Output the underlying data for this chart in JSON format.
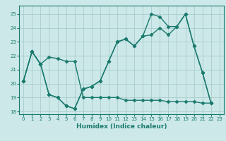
{
  "xlabel": "Humidex (Indice chaleur)",
  "ylabel": "",
  "background_color": "#cce8e8",
  "grid_color": "#aacccc",
  "line_color": "#1a7a6e",
  "xlim": [
    -0.5,
    23.5
  ],
  "ylim": [
    17.8,
    25.6
  ],
  "yticks": [
    18,
    19,
    20,
    21,
    22,
    23,
    24,
    25
  ],
  "xticks": [
    0,
    1,
    2,
    3,
    4,
    5,
    6,
    7,
    8,
    9,
    10,
    11,
    12,
    13,
    14,
    15,
    16,
    17,
    18,
    19,
    20,
    21,
    22,
    23
  ],
  "series": [
    [
      20.2,
      22.3,
      21.4,
      19.2,
      19.0,
      18.4,
      18.2,
      19.6,
      19.8,
      20.2,
      21.6,
      23.0,
      23.2,
      22.7,
      23.4,
      23.5,
      24.0,
      23.5,
      24.1,
      25.0,
      22.7,
      20.8,
      18.6
    ],
    [
      20.2,
      22.3,
      21.4,
      19.2,
      19.0,
      18.4,
      18.2,
      19.6,
      19.8,
      20.2,
      21.6,
      23.0,
      23.2,
      22.7,
      23.4,
      25.0,
      24.8,
      24.1,
      24.1,
      25.0,
      22.7,
      20.8,
      18.6
    ],
    [
      20.2,
      22.3,
      21.4,
      21.9,
      21.8,
      21.6,
      21.6,
      19.0,
      19.0,
      19.0,
      19.0,
      19.0,
      18.8,
      18.8,
      18.8,
      18.8,
      18.8,
      18.7,
      18.7,
      18.7,
      18.7,
      18.6,
      18.6
    ]
  ],
  "marker": "D",
  "markersize": 2.5,
  "linewidth": 1.0,
  "tick_fontsize": 5.0,
  "xlabel_fontsize": 6.5
}
